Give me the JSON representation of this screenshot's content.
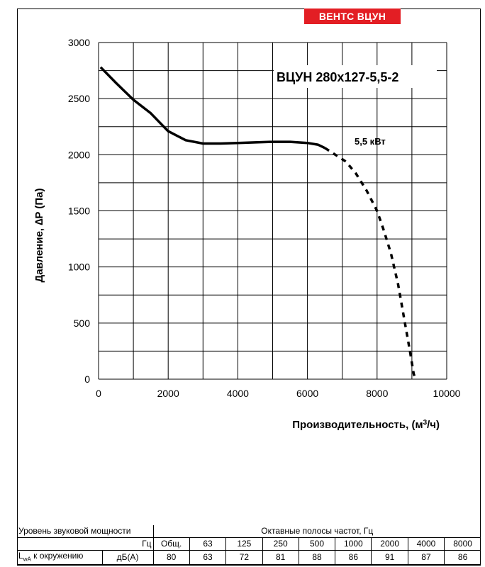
{
  "brand": "ВЕНТС ВЦУН",
  "colors": {
    "brand_bg": "#e31e24",
    "curve": "#000000"
  },
  "chart_data": {
    "type": "line",
    "title": "ВЦУН 280х127-5,5-2",
    "ylabel": "Давление, ∆P (Па)",
    "xlabel_main": "Производительность, (м",
    "xlabel_sup": "3",
    "xlabel_tail": "/ч)",
    "xlim": [
      0,
      10000
    ],
    "ylim": [
      0,
      3000
    ],
    "xticks": [
      0,
      2000,
      4000,
      6000,
      8000,
      10000
    ],
    "yticks": [
      0,
      500,
      1000,
      1500,
      2000,
      2500,
      3000
    ],
    "grid": true,
    "annotation": "5,5 кВт",
    "series": [
      {
        "style": "solid",
        "x": [
          60,
          500,
          1000,
          1500,
          2000,
          2500,
          3000,
          3500,
          4000,
          4500,
          5000,
          5500,
          6000,
          6300,
          6500
        ],
        "y": [
          2780,
          2640,
          2490,
          2370,
          2210,
          2130,
          2100,
          2100,
          2105,
          2110,
          2115,
          2115,
          2105,
          2090,
          2060
        ]
      },
      {
        "style": "dashed",
        "x": [
          6500,
          6800,
          7100,
          7400,
          7700,
          8000,
          8200,
          8400,
          8600,
          8800,
          8950,
          9050,
          9100
        ],
        "y": [
          2060,
          2000,
          1940,
          1830,
          1680,
          1500,
          1320,
          1120,
          850,
          500,
          240,
          50,
          0
        ]
      }
    ]
  },
  "table": {
    "caption_left": "Уровень звуковой мощности",
    "caption_right": "Октавные полосы частот, Гц",
    "unit_hz": "Гц",
    "headers": [
      "Общ.",
      "63",
      "125",
      "250",
      "500",
      "1000",
      "2000",
      "4000",
      "8000"
    ],
    "row_label_main": "L",
    "row_label_sub": "wA",
    "row_label_rest": " к окружению",
    "row_unit": "дБ(А)",
    "values": [
      "80",
      "63",
      "72",
      "81",
      "88",
      "86",
      "91",
      "87",
      "86"
    ]
  }
}
